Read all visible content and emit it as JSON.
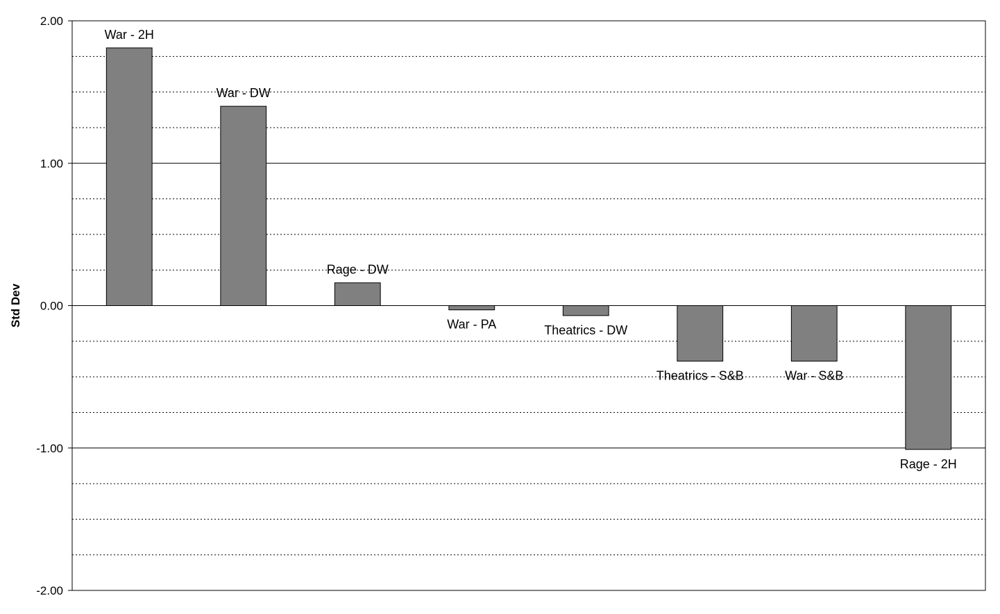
{
  "chart_data": {
    "type": "bar",
    "title": "",
    "xlabel": "",
    "ylabel": "Std Dev",
    "ylim": [
      -2,
      2
    ],
    "ytick_step": 1,
    "ytick_labels": [
      "2.00",
      "1.00",
      "0.00",
      "-1.00",
      "-2.00"
    ],
    "grid": {
      "major": "solid",
      "minor": "dotted",
      "minor_step": 0.25
    },
    "legend": "none",
    "bar_color": "#808080",
    "categories": [
      "War - 2H",
      "War - DW",
      "Rage - DW",
      "War - PA",
      "Theatrics - DW",
      "Theatrics - S&B",
      "War - S&B",
      "Rage - 2H"
    ],
    "values": [
      1.81,
      1.4,
      0.16,
      -0.03,
      -0.07,
      -0.39,
      -0.39,
      -1.01
    ]
  }
}
